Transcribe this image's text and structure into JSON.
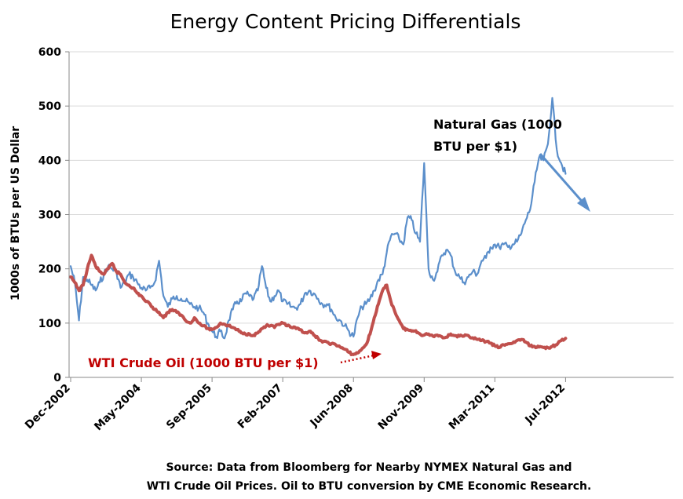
{
  "chart_data": {
    "type": "line",
    "title": "Energy Content Pricing Differentials",
    "ylabel": "1000s of BTUs per US Dollar",
    "xlabel": "",
    "ylim": [
      0,
      600
    ],
    "yticks": [
      0,
      100,
      200,
      300,
      400,
      500,
      600
    ],
    "xticks": [
      "Dec-2002",
      "May-2004",
      "Sep-2005",
      "Feb-2007",
      "Jun-2008",
      "Nov-2009",
      "Mar-2011",
      "Jul-2012"
    ],
    "grid": true,
    "legend": "none",
    "annotations": {
      "gas_line1": "Natural Gas (1000",
      "gas_line2": "BTU per $1)",
      "oil": "WTI Crude Oil (1000 BTU per $1)"
    },
    "source_line1": "Source:  Data from Bloomberg for Nearby NYMEX Natural Gas and",
    "source_line2": "WTI Crude Oil Prices.  Oil to BTU conversion by CME Economic Research.",
    "series": [
      {
        "name": "Natural Gas (1000 BTU per $1)",
        "color": "#5b8fcb",
        "points": [
          [
            "Dec-2002",
            205
          ],
          [
            "Jan-2003",
            175
          ],
          [
            "Feb-2003",
            105
          ],
          [
            "Mar-2003",
            185
          ],
          [
            "Apr-2003",
            180
          ],
          [
            "May-2003",
            170
          ],
          [
            "Jun-2003",
            160
          ],
          [
            "Jul-2003",
            175
          ],
          [
            "Aug-2003",
            190
          ],
          [
            "Sep-2003",
            205
          ],
          [
            "Oct-2003",
            200
          ],
          [
            "Nov-2003",
            195
          ],
          [
            "Dec-2003",
            165
          ],
          [
            "Jan-2004",
            175
          ],
          [
            "Feb-2004",
            190
          ],
          [
            "Mar-2004",
            185
          ],
          [
            "Apr-2004",
            175
          ],
          [
            "May-2004",
            165
          ],
          [
            "Jun-2004",
            160
          ],
          [
            "Jul-2004",
            165
          ],
          [
            "Aug-2004",
            175
          ],
          [
            "Sep-2004",
            215
          ],
          [
            "Oct-2004",
            150
          ],
          [
            "Nov-2004",
            130
          ],
          [
            "Dec-2004",
            145
          ],
          [
            "Jan-2005",
            150
          ],
          [
            "Feb-2005",
            145
          ],
          [
            "Mar-2005",
            140
          ],
          [
            "Apr-2005",
            135
          ],
          [
            "May-2005",
            130
          ],
          [
            "Jun-2005",
            128
          ],
          [
            "Jul-2005",
            120
          ],
          [
            "Aug-2005",
            100
          ],
          [
            "Sep-2005",
            85
          ],
          [
            "Oct-2005",
            75
          ],
          [
            "Nov-2005",
            85
          ],
          [
            "Dec-2005",
            72
          ],
          [
            "Jan-2006",
            105
          ],
          [
            "Feb-2006",
            125
          ],
          [
            "Mar-2006",
            140
          ],
          [
            "Apr-2006",
            140
          ],
          [
            "May-2006",
            155
          ],
          [
            "Jun-2006",
            150
          ],
          [
            "Jul-2006",
            145
          ],
          [
            "Aug-2006",
            160
          ],
          [
            "Sep-2006",
            205
          ],
          [
            "Oct-2006",
            165
          ],
          [
            "Nov-2006",
            140
          ],
          [
            "Dec-2006",
            150
          ],
          [
            "Jan-2007",
            160
          ],
          [
            "Feb-2007",
            140
          ],
          [
            "Mar-2007",
            135
          ],
          [
            "Apr-2007",
            130
          ],
          [
            "May-2007",
            128
          ],
          [
            "Jun-2007",
            135
          ],
          [
            "Jul-2007",
            155
          ],
          [
            "Aug-2007",
            160
          ],
          [
            "Sep-2007",
            155
          ],
          [
            "Oct-2007",
            145
          ],
          [
            "Nov-2007",
            135
          ],
          [
            "Dec-2007",
            135
          ],
          [
            "Jan-2008",
            125
          ],
          [
            "Feb-2008",
            110
          ],
          [
            "Mar-2008",
            105
          ],
          [
            "Apr-2008",
            95
          ],
          [
            "May-2008",
            85
          ],
          [
            "Jun-2008",
            75
          ],
          [
            "Jul-2008",
            110
          ],
          [
            "Aug-2008",
            130
          ],
          [
            "Sep-2008",
            135
          ],
          [
            "Oct-2008",
            145
          ],
          [
            "Nov-2008",
            160
          ],
          [
            "Dec-2008",
            180
          ],
          [
            "Jan-2009",
            190
          ],
          [
            "Feb-2009",
            230
          ],
          [
            "Mar-2009",
            260
          ],
          [
            "Apr-2009",
            265
          ],
          [
            "May-2009",
            255
          ],
          [
            "Jun-2009",
            245
          ],
          [
            "Jul-2009",
            295
          ],
          [
            "Aug-2009",
            290
          ],
          [
            "Sep-2009",
            265
          ],
          [
            "Oct-2009",
            250
          ],
          [
            "Nov-2009",
            395
          ],
          [
            "Dec-2009",
            200
          ],
          [
            "Jan-2010",
            180
          ],
          [
            "Feb-2010",
            195
          ],
          [
            "Mar-2010",
            225
          ],
          [
            "Apr-2010",
            235
          ],
          [
            "May-2010",
            225
          ],
          [
            "Jun-2010",
            195
          ],
          [
            "Jul-2010",
            185
          ],
          [
            "Aug-2010",
            175
          ],
          [
            "Sep-2010",
            185
          ],
          [
            "Oct-2010",
            195
          ],
          [
            "Nov-2010",
            190
          ],
          [
            "Dec-2010",
            215
          ],
          [
            "Jan-2011",
            220
          ],
          [
            "Feb-2011",
            240
          ],
          [
            "Mar-2011",
            245
          ],
          [
            "Apr-2011",
            240
          ],
          [
            "May-2011",
            245
          ],
          [
            "Jun-2011",
            240
          ],
          [
            "Jul-2011",
            245
          ],
          [
            "Aug-2011",
            250
          ],
          [
            "Sep-2011",
            265
          ],
          [
            "Oct-2011",
            290
          ],
          [
            "Nov-2011",
            310
          ],
          [
            "Dec-2011",
            360
          ],
          [
            "Jan-2012",
            405
          ],
          [
            "Feb-2012",
            400
          ],
          [
            "Mar-2012",
            430
          ],
          [
            "Apr-2012",
            515
          ],
          [
            "May-2012",
            420
          ],
          [
            "Jun-2012",
            395
          ],
          [
            "Jul-2012",
            375
          ]
        ]
      },
      {
        "name": "WTI Crude Oil (1000 BTU per $1)",
        "color": "#c0504d",
        "points": [
          [
            "Dec-2002",
            185
          ],
          [
            "Jan-2003",
            175
          ],
          [
            "Feb-2003",
            160
          ],
          [
            "Mar-2003",
            170
          ],
          [
            "Apr-2003",
            200
          ],
          [
            "May-2003",
            225
          ],
          [
            "Jun-2003",
            205
          ],
          [
            "Jul-2003",
            195
          ],
          [
            "Aug-2003",
            190
          ],
          [
            "Sep-2003",
            200
          ],
          [
            "Oct-2003",
            210
          ],
          [
            "Nov-2003",
            195
          ],
          [
            "Dec-2003",
            190
          ],
          [
            "Jan-2004",
            175
          ],
          [
            "Feb-2004",
            170
          ],
          [
            "Mar-2004",
            165
          ],
          [
            "Apr-2004",
            155
          ],
          [
            "May-2004",
            150
          ],
          [
            "Jun-2004",
            140
          ],
          [
            "Jul-2004",
            135
          ],
          [
            "Aug-2004",
            125
          ],
          [
            "Sep-2004",
            120
          ],
          [
            "Oct-2004",
            110
          ],
          [
            "Nov-2004",
            120
          ],
          [
            "Dec-2004",
            125
          ],
          [
            "Jan-2005",
            120
          ],
          [
            "Feb-2005",
            115
          ],
          [
            "Mar-2005",
            105
          ],
          [
            "Apr-2005",
            100
          ],
          [
            "May-2005",
            110
          ],
          [
            "Jun-2005",
            100
          ],
          [
            "Jul-2005",
            95
          ],
          [
            "Aug-2005",
            90
          ],
          [
            "Sep-2005",
            88
          ],
          [
            "Oct-2005",
            92
          ],
          [
            "Nov-2005",
            100
          ],
          [
            "Dec-2005",
            98
          ],
          [
            "Jan-2006",
            95
          ],
          [
            "Feb-2006",
            92
          ],
          [
            "Mar-2006",
            88
          ],
          [
            "Apr-2006",
            82
          ],
          [
            "May-2006",
            80
          ],
          [
            "Jun-2006",
            80
          ],
          [
            "Jul-2006",
            78
          ],
          [
            "Aug-2006",
            82
          ],
          [
            "Sep-2006",
            90
          ],
          [
            "Oct-2006",
            95
          ],
          [
            "Nov-2006",
            95
          ],
          [
            "Dec-2006",
            92
          ],
          [
            "Jan-2007",
            98
          ],
          [
            "Feb-2007",
            100
          ],
          [
            "Mar-2007",
            95
          ],
          [
            "Apr-2007",
            92
          ],
          [
            "May-2007",
            90
          ],
          [
            "Jun-2007",
            88
          ],
          [
            "Jul-2007",
            82
          ],
          [
            "Aug-2007",
            85
          ],
          [
            "Sep-2007",
            78
          ],
          [
            "Oct-2007",
            72
          ],
          [
            "Nov-2007",
            65
          ],
          [
            "Dec-2007",
            65
          ],
          [
            "Jan-2008",
            62
          ],
          [
            "Feb-2008",
            60
          ],
          [
            "Mar-2008",
            56
          ],
          [
            "Apr-2008",
            52
          ],
          [
            "May-2008",
            46
          ],
          [
            "Jun-2008",
            42
          ],
          [
            "Jul-2008",
            45
          ],
          [
            "Aug-2008",
            52
          ],
          [
            "Sep-2008",
            60
          ],
          [
            "Oct-2008",
            80
          ],
          [
            "Nov-2008",
            110
          ],
          [
            "Dec-2008",
            135
          ],
          [
            "Jan-2009",
            160
          ],
          [
            "Feb-2009",
            170
          ],
          [
            "Mar-2009",
            140
          ],
          [
            "Apr-2009",
            120
          ],
          [
            "May-2009",
            105
          ],
          [
            "Jun-2009",
            90
          ],
          [
            "Jul-2009",
            88
          ],
          [
            "Aug-2009",
            85
          ],
          [
            "Sep-2009",
            86
          ],
          [
            "Oct-2009",
            80
          ],
          [
            "Nov-2009",
            78
          ],
          [
            "Dec-2009",
            80
          ],
          [
            "Jan-2010",
            76
          ],
          [
            "Feb-2010",
            78
          ],
          [
            "Mar-2010",
            75
          ],
          [
            "Apr-2010",
            74
          ],
          [
            "May-2010",
            80
          ],
          [
            "Jun-2010",
            77
          ],
          [
            "Jul-2010",
            76
          ],
          [
            "Aug-2010",
            76
          ],
          [
            "Sep-2010",
            77
          ],
          [
            "Oct-2010",
            73
          ],
          [
            "Nov-2010",
            70
          ],
          [
            "Dec-2010",
            68
          ],
          [
            "Jan-2011",
            66
          ],
          [
            "Feb-2011",
            63
          ],
          [
            "Mar-2011",
            58
          ],
          [
            "Apr-2011",
            55
          ],
          [
            "May-2011",
            60
          ],
          [
            "Jun-2011",
            62
          ],
          [
            "Jul-2011",
            63
          ],
          [
            "Aug-2011",
            68
          ],
          [
            "Sep-2011",
            70
          ],
          [
            "Oct-2011",
            65
          ],
          [
            "Nov-2011",
            58
          ],
          [
            "Dec-2011",
            57
          ],
          [
            "Jan-2012",
            56
          ],
          [
            "Feb-2012",
            55
          ],
          [
            "Mar-2012",
            55
          ],
          [
            "Apr-2012",
            57
          ],
          [
            "May-2012",
            60
          ],
          [
            "Jun-2012",
            68
          ],
          [
            "Jul-2012",
            72
          ]
        ]
      }
    ]
  }
}
